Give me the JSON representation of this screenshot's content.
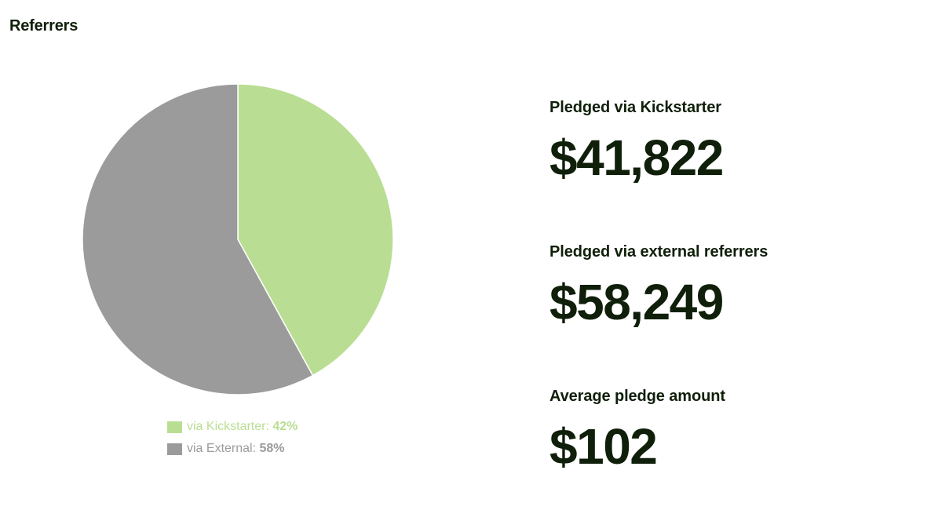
{
  "section": {
    "title": "Referrers"
  },
  "chart_data": {
    "type": "pie",
    "title": "",
    "slices": [
      {
        "label": "via Kickstarter:",
        "value": 42,
        "display": "42%",
        "color": "#b9de93"
      },
      {
        "label": "via External:",
        "value": 58,
        "display": "58%",
        "color": "#9b9b9b"
      }
    ],
    "legend": "bottom"
  },
  "stats": [
    {
      "label": "Pledged via Kickstarter",
      "value": "$41,822"
    },
    {
      "label": "Pledged via external referrers",
      "value": "$58,249"
    },
    {
      "label": "Average pledge amount",
      "value": "$102"
    }
  ]
}
